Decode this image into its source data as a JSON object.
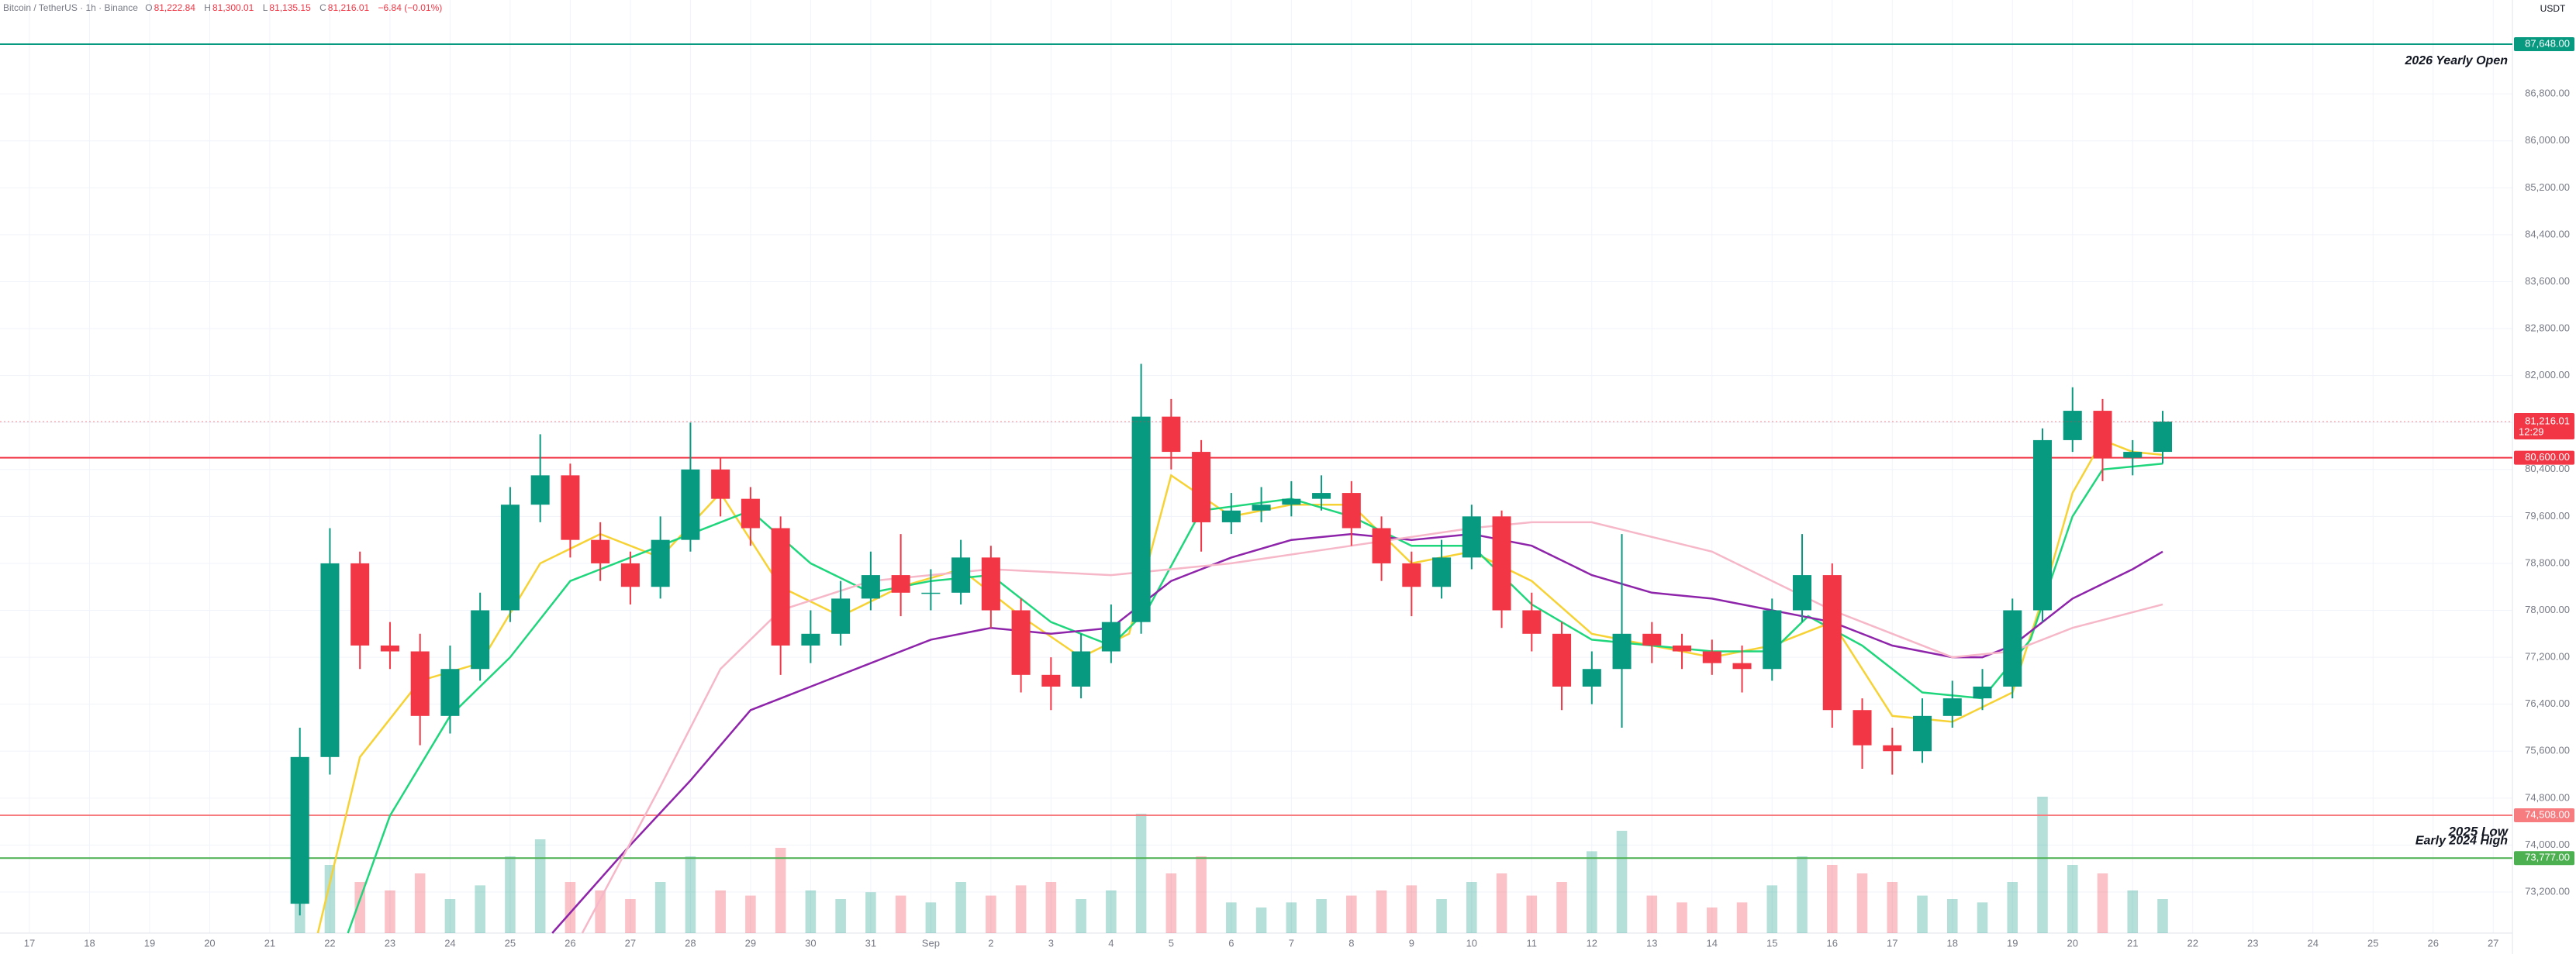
{
  "header": {
    "symbol": "Bitcoin / TetherUS · 1h · Binance",
    "ohlc": [
      {
        "key": "O",
        "value": "81,222.84"
      },
      {
        "key": "H",
        "value": "81,300.01"
      },
      {
        "key": "L",
        "value": "81,135.15"
      },
      {
        "key": "C",
        "value": "81,216.01"
      }
    ],
    "change": "−6.84 (−0.01%)",
    "currency": "USDT"
  },
  "chart_data": {
    "type": "candlestick",
    "xlim": [
      -0.49,
      41.32
    ],
    "ylim": [
      72500,
      88400
    ],
    "xticks": [
      {
        "value": 0,
        "label": "17"
      },
      {
        "value": 1,
        "label": "18"
      },
      {
        "value": 2,
        "label": "19"
      },
      {
        "value": 3,
        "label": "20"
      },
      {
        "value": 4,
        "label": "21"
      },
      {
        "value": 5,
        "label": "22"
      },
      {
        "value": 6,
        "label": "23"
      },
      {
        "value": 7,
        "label": "24"
      },
      {
        "value": 8,
        "label": "25"
      },
      {
        "value": 9,
        "label": "26"
      },
      {
        "value": 10,
        "label": "27"
      },
      {
        "value": 11,
        "label": "28"
      },
      {
        "value": 12,
        "label": "29"
      },
      {
        "value": 13,
        "label": "30"
      },
      {
        "value": 14,
        "label": "31"
      },
      {
        "value": 15,
        "label": "Sep"
      },
      {
        "value": 16,
        "label": "2"
      },
      {
        "value": 17,
        "label": "3"
      },
      {
        "value": 18,
        "label": "4"
      },
      {
        "value": 19,
        "label": "5"
      },
      {
        "value": 20,
        "label": "6"
      },
      {
        "value": 21,
        "label": "7"
      },
      {
        "value": 22,
        "label": "8"
      },
      {
        "value": 23,
        "label": "9"
      },
      {
        "value": 24,
        "label": "10"
      },
      {
        "value": 25,
        "label": "11"
      },
      {
        "value": 26,
        "label": "12"
      },
      {
        "value": 27,
        "label": "13"
      },
      {
        "value": 28,
        "label": "14"
      },
      {
        "value": 29,
        "label": "15"
      },
      {
        "value": 30,
        "label": "16"
      },
      {
        "value": 31,
        "label": "17"
      },
      {
        "value": 32,
        "label": "18"
      },
      {
        "value": 33,
        "label": "19"
      },
      {
        "value": 34,
        "label": "20"
      },
      {
        "value": 35,
        "label": "21"
      },
      {
        "value": 36,
        "label": "22"
      },
      {
        "value": 37,
        "label": "23"
      },
      {
        "value": 38,
        "label": "24"
      },
      {
        "value": 39,
        "label": "25"
      },
      {
        "value": 40,
        "label": "26"
      },
      {
        "value": 41,
        "label": "27"
      }
    ],
    "yticks": [
      {
        "value": 73200,
        "label": "73,200.00"
      },
      {
        "value": 74000,
        "label": "74,000.00"
      },
      {
        "value": 74800,
        "label": "74,800.00"
      },
      {
        "value": 75600,
        "label": "75,600.00"
      },
      {
        "value": 76400,
        "label": "76,400.00"
      },
      {
        "value": 77200,
        "label": "77,200.00"
      },
      {
        "value": 78000,
        "label": "78,000.00"
      },
      {
        "value": 78800,
        "label": "78,800.00"
      },
      {
        "value": 79600,
        "label": "79,600.00"
      },
      {
        "value": 80400,
        "label": "80,400.00"
      },
      {
        "value": 81200,
        "label": "81,200.00"
      },
      {
        "value": 82000,
        "label": "82,000.00"
      },
      {
        "value": 82800,
        "label": "82,800.00"
      },
      {
        "value": 83600,
        "label": "83,600.00"
      },
      {
        "value": 84400,
        "label": "84,400.00"
      },
      {
        "value": 85200,
        "label": "85,200.00"
      },
      {
        "value": 86000,
        "label": "86,000.00"
      },
      {
        "value": 86800,
        "label": "86,800.00"
      }
    ],
    "grid": true,
    "up_color": "#089981",
    "down_color": "#f23645",
    "x": [
      4.5,
      5,
      5.5,
      6,
      6.5,
      7,
      7.5,
      8,
      8.5,
      9,
      9.5,
      10,
      10.5,
      11,
      11.5,
      12,
      12.5,
      13,
      13.5,
      14,
      14.5,
      15,
      15.5,
      16,
      16.5,
      17,
      17.5,
      18,
      18.5,
      19,
      19.5,
      20,
      20.5,
      21,
      21.5,
      22,
      22.5,
      23,
      23.5,
      24,
      24.5,
      25,
      25.5,
      26,
      26.5,
      27,
      27.5,
      28,
      28.5,
      29,
      29.5,
      30,
      30.5,
      31,
      31.5,
      32,
      32.5,
      33,
      33.5,
      34,
      34.5,
      35,
      35.5
    ],
    "open": [
      73000,
      75500,
      78800,
      77400,
      77300,
      76200,
      77000,
      78000,
      79800,
      80300,
      79200,
      78800,
      78400,
      79200,
      80400,
      79900,
      79400,
      77400,
      77600,
      78200,
      78600,
      78300,
      78300,
      78900,
      78000,
      76900,
      76700,
      77300,
      77800,
      81300,
      80700,
      79500,
      79700,
      79800,
      79900,
      80000,
      79400,
      78800,
      78400,
      78900,
      79600,
      78000,
      77600,
      76700,
      77000,
      77600,
      77400,
      77300,
      77100,
      77000,
      78000,
      78600,
      76300,
      75700,
      75600,
      76200,
      76500,
      76700,
      78000,
      80900,
      81400,
      80600,
      80700
    ],
    "high": [
      76000,
      79400,
      79000,
      77800,
      77600,
      77400,
      78300,
      80100,
      81000,
      80500,
      79500,
      79000,
      79600,
      81200,
      80600,
      80100,
      79600,
      78000,
      78500,
      79000,
      79300,
      78700,
      79200,
      79100,
      78200,
      77200,
      77600,
      78100,
      82200,
      81600,
      80900,
      80000,
      80100,
      80200,
      80300,
      80200,
      79600,
      79000,
      79200,
      79800,
      79700,
      78300,
      77800,
      77300,
      79300,
      77800,
      77600,
      77500,
      77400,
      78200,
      79300,
      78800,
      76500,
      76000,
      76500,
      76800,
      77000,
      78200,
      81100,
      81800,
      81600,
      80900,
      81400
    ],
    "low": [
      72800,
      75200,
      77000,
      77000,
      75700,
      75900,
      76800,
      77800,
      79500,
      78900,
      78500,
      78100,
      78200,
      79000,
      79600,
      79100,
      76900,
      77100,
      77400,
      78000,
      77900,
      78000,
      78100,
      77700,
      76600,
      76300,
      76500,
      77100,
      77600,
      80400,
      79000,
      79300,
      79500,
      79600,
      79700,
      79100,
      78500,
      77900,
      78200,
      78700,
      77700,
      77300,
      76300,
      76400,
      76000,
      77100,
      77000,
      76900,
      76600,
      76800,
      77800,
      76000,
      75300,
      75200,
      75400,
      76000,
      76300,
      76500,
      77800,
      80700,
      80200,
      80300,
      80500
    ],
    "close": [
      75500,
      78800,
      77400,
      77300,
      76200,
      77000,
      78000,
      79800,
      80300,
      79200,
      78800,
      78400,
      79200,
      80400,
      79900,
      79400,
      77400,
      77600,
      78200,
      78600,
      78300,
      78300,
      78900,
      78000,
      76900,
      76700,
      77300,
      77800,
      81300,
      80700,
      79500,
      79700,
      79800,
      79900,
      80000,
      79400,
      78800,
      78400,
      78900,
      79600,
      78000,
      77600,
      76700,
      77000,
      77600,
      77400,
      77300,
      77100,
      77000,
      78000,
      78600,
      76300,
      75700,
      75600,
      76200,
      76500,
      76700,
      78000,
      80900,
      81400,
      80600,
      80700,
      81216.01
    ],
    "volume": [
      95,
      40,
      30,
      25,
      35,
      20,
      28,
      45,
      55,
      30,
      25,
      20,
      30,
      45,
      25,
      22,
      50,
      25,
      20,
      24,
      22,
      18,
      30,
      22,
      28,
      30,
      20,
      25,
      70,
      35,
      45,
      18,
      15,
      18,
      20,
      22,
      25,
      28,
      20,
      30,
      35,
      22,
      30,
      48,
      60,
      22,
      18,
      15,
      18,
      28,
      45,
      40,
      35,
      30,
      22,
      20,
      18,
      30,
      80,
      40,
      35,
      25,
      20
    ],
    "ma": [
      {
        "color": "#f7d234",
        "x": [
          4.8,
          5.5,
          6.5,
          7.5,
          8.5,
          9.5,
          10.5,
          11.5,
          12.5,
          13.5,
          14.5,
          15.5,
          16.5,
          17.5,
          18.3,
          19,
          20,
          21,
          22,
          23,
          24,
          25,
          26,
          27,
          28,
          29,
          30,
          31,
          32,
          33,
          33.5,
          34,
          34.5,
          35,
          35.5
        ],
        "values": [
          72500,
          75500,
          76800,
          77100,
          78800,
          79300,
          78900,
          80000,
          78400,
          77900,
          78400,
          78700,
          77900,
          77200,
          77600,
          80300,
          79600,
          79800,
          79800,
          78800,
          79000,
          78500,
          77600,
          77400,
          77200,
          77400,
          77800,
          76200,
          76100,
          76600,
          78200,
          80000,
          80900,
          80700,
          80650
        ]
      },
      {
        "color": "#1fd67c",
        "x": [
          5.3,
          6,
          7,
          8,
          9,
          10,
          11,
          12,
          13,
          14,
          15,
          16,
          17,
          18,
          18.6,
          19.5,
          21,
          22,
          23,
          24,
          25,
          26,
          27,
          28,
          29,
          29.6,
          30.5,
          31.5,
          32.5,
          33.3,
          34,
          34.5,
          35.5
        ],
        "values": [
          72500,
          74500,
          76200,
          77200,
          78500,
          78900,
          79300,
          79700,
          78800,
          78300,
          78500,
          78600,
          77800,
          77400,
          78000,
          79700,
          79900,
          79600,
          79100,
          79100,
          78100,
          77500,
          77400,
          77300,
          77300,
          77900,
          77400,
          76600,
          76500,
          77500,
          79600,
          80400,
          80500
        ]
      },
      {
        "color": "#8e24aa",
        "x": [
          8.7,
          10,
          11,
          12,
          13,
          14,
          15,
          16,
          17,
          18,
          19,
          20,
          21,
          22,
          23,
          24,
          25,
          26,
          27,
          28,
          29,
          30,
          31,
          32,
          32.5,
          33,
          34,
          35,
          35.5
        ],
        "values": [
          72500,
          74000,
          75100,
          76300,
          76700,
          77100,
          77500,
          77700,
          77600,
          77700,
          78500,
          78900,
          79200,
          79300,
          79200,
          79300,
          79100,
          78600,
          78300,
          78200,
          78000,
          77800,
          77400,
          77200,
          77200,
          77400,
          78200,
          78700,
          79000
        ]
      },
      {
        "color": "#f6b7c8",
        "x": [
          9.2,
          10.5,
          11.5,
          12.5,
          14,
          16,
          18,
          20,
          22,
          24,
          25,
          26,
          28,
          30,
          32,
          33,
          34,
          35.5
        ],
        "values": [
          72500,
          75000,
          77000,
          78000,
          78500,
          78700,
          78600,
          78800,
          79100,
          79400,
          79500,
          79500,
          79000,
          78000,
          77200,
          77300,
          77700,
          78100
        ]
      }
    ],
    "levels": [
      {
        "value": 87648,
        "label": "87,648.00",
        "color": "#089981",
        "annotation": "2026 Yearly Open"
      },
      {
        "value": 80600,
        "label": "80,600.00",
        "color": "#f23645"
      },
      {
        "value": 74508,
        "label": "74,508.00",
        "color": "#f77c80",
        "annotation": "2025 Low"
      },
      {
        "value": 73777,
        "label": "73,777.00",
        "color": "#4caf50",
        "annotation": "Early 2024 High"
      }
    ],
    "last_price": {
      "value": 81216.01,
      "label": "81,216.01",
      "countdown": "12:29"
    }
  }
}
